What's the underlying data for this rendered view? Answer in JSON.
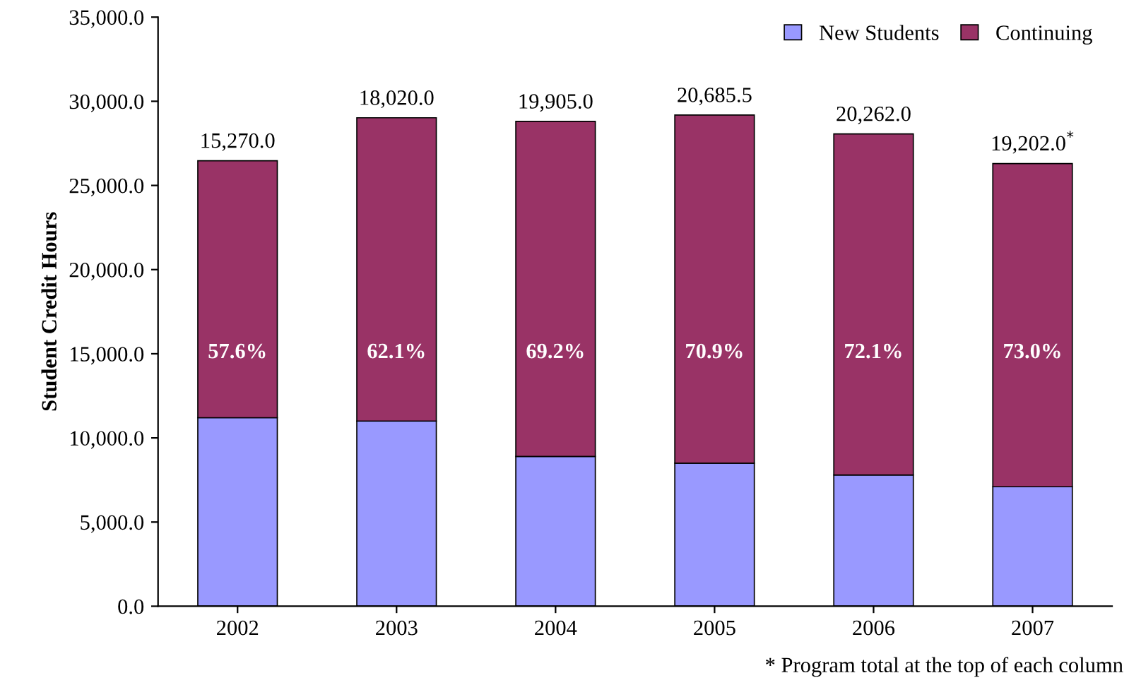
{
  "chart_data": {
    "type": "bar",
    "stacked": true,
    "ylabel": "Student Credit Hours",
    "categories": [
      "2002",
      "2003",
      "2004",
      "2005",
      "2006",
      "2007"
    ],
    "series": [
      {
        "name": "New Students",
        "color": "#9999ff",
        "values": [
          11200,
          11000,
          8900,
          8500,
          7800,
          7100
        ]
      },
      {
        "name": "Continuing",
        "color": "#993366",
        "values": [
          15270,
          18020,
          19905,
          20685.5,
          20262,
          19202
        ],
        "value_labels": [
          "15,270.0",
          "18,020.0",
          "19,905.0",
          "20,685.5",
          "20,262.0",
          "19,202.0$^{*}$"
        ]
      }
    ],
    "annotations": [
      "57.6%",
      "62.1%",
      "69.2%",
      "70.9%",
      "72.1%",
      "73.0%",
      "* Program total at the top of each column"
    ],
    "ylim": [
      0,
      35000
    ],
    "yticks": [
      {
        "value": 0,
        "label": "0.0"
      },
      {
        "value": 5000,
        "label": "5,000.0"
      },
      {
        "value": 10000,
        "label": "10,000.0"
      },
      {
        "value": 15000,
        "label": "15,000.0"
      },
      {
        "value": 20000,
        "label": "20,000.0"
      },
      {
        "value": 25000,
        "label": "25,000.0"
      },
      {
        "value": 30000,
        "label": "30,000.0"
      },
      {
        "value": 35000,
        "label": "35,000.0"
      }
    ],
    "legend": "top right",
    "grid": false
  }
}
